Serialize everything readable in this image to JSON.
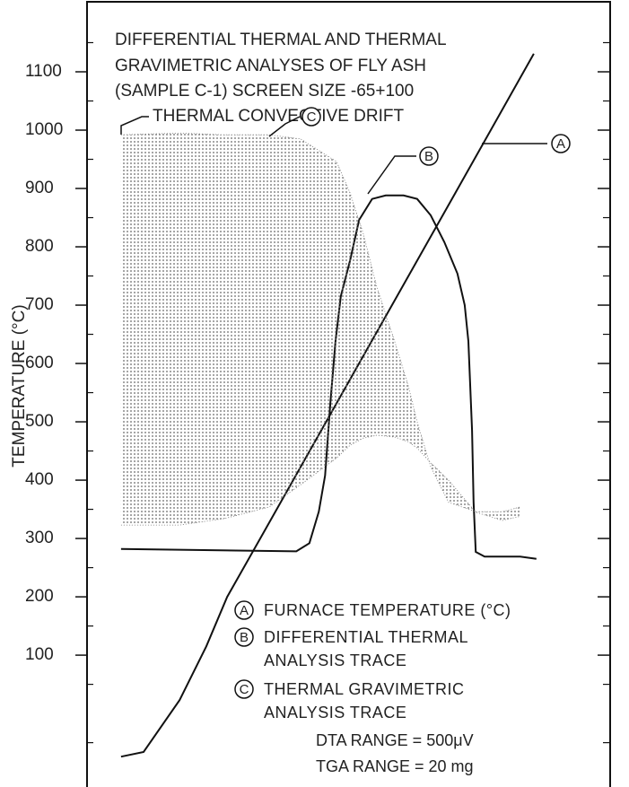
{
  "chart_data": {
    "type": "line",
    "title_lines": [
      "DIFFERENTIAL THERMAL AND THERMAL",
      "GRAVIMETRIC ANALYSES OF FLY ASH",
      "(SAMPLE C-1) SCREEN SIZE -65+100"
    ],
    "y_label": "TEMPERATURE (°C)",
    "annotation": "THERMAL CONVECTIVE DRIFT",
    "notes": [
      "DTA RANGE = 500μV",
      "TGA RANGE = 20 mg"
    ],
    "xlim": [
      0,
      100
    ],
    "ylim": [
      -126,
      1220
    ],
    "yticks": [
      100,
      200,
      300,
      400,
      500,
      600,
      700,
      800,
      900,
      1000,
      1100
    ],
    "minor_yticks": [
      -50,
      50,
      150,
      250,
      350,
      450,
      550,
      650,
      750,
      850,
      950,
      1050,
      1150
    ],
    "series": [
      {
        "label": "A",
        "name": "FURNACE TEMPERATURE (°C)",
        "color": "#111",
        "x": [
          6.5,
          10.8,
          17.7,
          22.8,
          26.8,
          33.1,
          39.4,
          45.7,
          51.5,
          58.3,
          70.9,
          85.4
        ],
        "values": [
          -74,
          -66,
          23,
          115,
          200,
          300,
          400,
          500,
          592,
          700,
          900,
          1131
        ]
      },
      {
        "label": "B",
        "name": "DIFFERENTIAL THERMAL ANALYSIS TRACE",
        "color": "#111",
        "x": [
          6.5,
          40,
          42.5,
          44.3,
          45.5,
          46.5,
          47.5,
          48.5,
          50.3,
          52,
          54.5,
          57.1,
          60.5,
          63.1,
          65.7,
          68.3,
          70.8,
          72.2,
          72.9,
          73.6,
          73.9,
          74.3,
          76,
          82.8,
          85.9
        ],
        "values": [
          282,
          278,
          292,
          346,
          408,
          531,
          638,
          715,
          777,
          846,
          882,
          888,
          888,
          882,
          854,
          808,
          754,
          700,
          638,
          485,
          362,
          277,
          269,
          269,
          265
        ]
      },
      {
        "label": "C",
        "name": "THERMAL GRAVIMETRIC ANALYSIS TRACE",
        "color": "#333",
        "fill": "#777",
        "x": [
          6.5,
          17.7,
          26.2,
          34.8,
          40.8,
          47.7,
          50.3,
          52.8,
          55.4,
          58.8,
          61.4,
          63.1,
          65.7,
          69.1,
          74.3,
          79.4,
          82.8
        ],
        "values": [
          992,
          995,
          992,
          992,
          985,
          946,
          892,
          823,
          731,
          638,
          562,
          500,
          423,
          362,
          346,
          346,
          354
        ],
        "band_low": [
          323,
          323,
          334,
          354,
          392,
          438,
          460,
          472,
          477,
          474,
          466,
          455,
          430,
          400,
          345,
          331,
          338
        ]
      }
    ]
  }
}
